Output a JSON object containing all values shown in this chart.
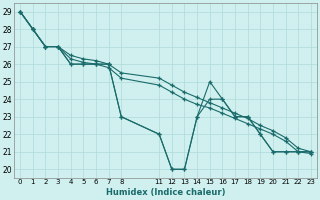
{
  "xlabel": "Humidex (Indice chaleur)",
  "bg_color": "#cff0ee",
  "line_color": "#1a6b6b",
  "grid_color": "#b0dada",
  "lines": [
    {
      "x": [
        0,
        1,
        2,
        3,
        4,
        5,
        6,
        7,
        8,
        11,
        12,
        13,
        14,
        15,
        16,
        17,
        18,
        19,
        20,
        21,
        22,
        23
      ],
      "y": [
        29,
        28,
        27,
        27,
        26,
        26,
        26,
        26,
        23,
        22,
        20,
        20,
        23,
        25,
        24,
        23,
        23,
        22,
        21,
        21,
        21,
        21
      ]
    },
    {
      "x": [
        0,
        1,
        2,
        3,
        4,
        5,
        6,
        7,
        8,
        11,
        12,
        13,
        14,
        15,
        16,
        17,
        18,
        19,
        20,
        21,
        22,
        23
      ],
      "y": [
        29,
        28,
        27,
        27,
        26,
        26,
        26,
        26,
        23,
        22,
        20,
        20,
        23,
        24,
        24,
        23,
        23,
        22,
        21,
        21,
        21,
        21
      ]
    },
    {
      "x": [
        0,
        1,
        2,
        3,
        4,
        5,
        6,
        7,
        8,
        11,
        12,
        13,
        14,
        15,
        16,
        17,
        18,
        19,
        20,
        21,
        22,
        23
      ],
      "y": [
        29,
        28,
        27,
        27,
        26.5,
        26.3,
        26.2,
        26,
        25.5,
        25.2,
        24.8,
        24.4,
        24.1,
        23.8,
        23.5,
        23.2,
        22.9,
        22.5,
        22.2,
        21.8,
        21.2,
        21.0
      ]
    },
    {
      "x": [
        0,
        1,
        2,
        3,
        4,
        5,
        6,
        7,
        8,
        11,
        12,
        13,
        14,
        15,
        16,
        17,
        18,
        19,
        20,
        21,
        22,
        23
      ],
      "y": [
        29,
        28,
        27,
        27,
        26.3,
        26.1,
        26.0,
        25.8,
        25.2,
        24.8,
        24.4,
        24.0,
        23.7,
        23.5,
        23.2,
        22.9,
        22.6,
        22.3,
        22.0,
        21.6,
        21.0,
        20.9
      ]
    }
  ],
  "xlim": [
    -0.5,
    23.5
  ],
  "ylim": [
    19.5,
    29.5
  ],
  "xtick_positions": [
    0,
    1,
    2,
    3,
    4,
    5,
    6,
    7,
    8,
    11,
    12,
    13,
    14,
    15,
    16,
    17,
    18,
    19,
    20,
    21,
    22,
    23
  ],
  "xtick_labels": [
    "0",
    "1",
    "2",
    "3",
    "4",
    "5",
    "6",
    "7",
    "8",
    "11",
    "12",
    "13",
    "14",
    "15",
    "16",
    "17",
    "18",
    "19",
    "20",
    "21",
    "22",
    "23"
  ],
  "yticks": [
    20,
    21,
    22,
    23,
    24,
    25,
    26,
    27,
    28,
    29
  ]
}
